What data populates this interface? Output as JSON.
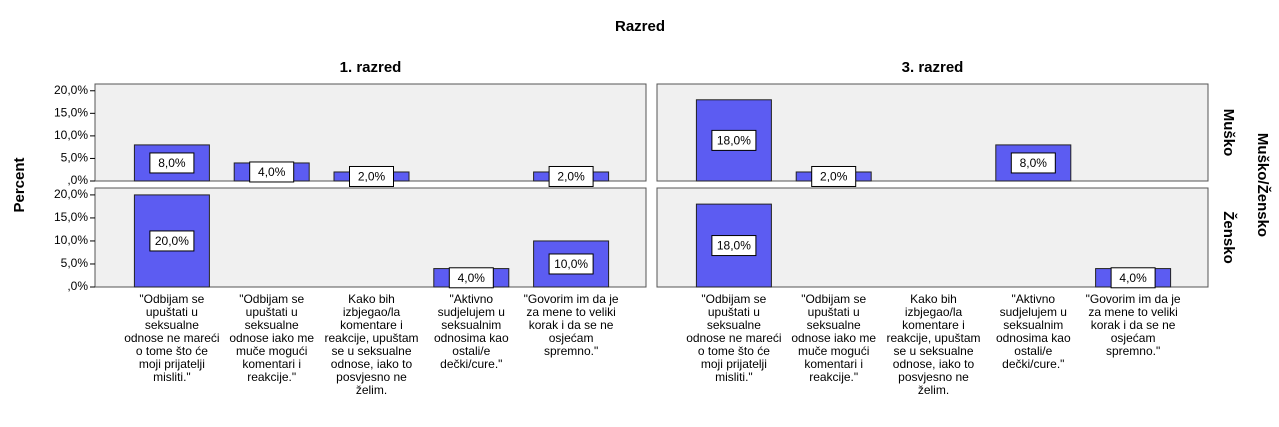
{
  "chart_data": {
    "type": "bar",
    "title": "Razred",
    "y_label": "Percent",
    "row_title": "Muško/Žensko",
    "columns": [
      "1. razred",
      "3. razred"
    ],
    "rows": [
      "Muško",
      "Žensko"
    ],
    "color": "#5c5cf2",
    "categories": [
      "\"Odbijam se upuštati u seksualne odnose ne mareći o tome što će moji prijatelji misliti.\"",
      "\"Odbijam se upuštati u seksualne odnose iako me muče mogući komentari i reakcije.\"",
      "Kako bih izbjegao/la komentare i reakcije, upuštam se u seksualne odnose, iako to posvjesno ne želim.",
      "\"Aktivno sudjelujem u seksualnim odnosima kao ostali/e dečki/cure.\"",
      "\"Govorim im da je za mene to veliki korak i da se ne osjećam spremno.\""
    ],
    "panels": [
      [
        {
          "values": [
            8,
            4,
            2,
            null,
            2
          ],
          "value_labels": [
            "8,0%",
            "4,0%",
            "2,0%",
            null,
            "2,0%"
          ]
        },
        {
          "values": [
            18,
            2,
            null,
            8,
            null
          ],
          "value_labels": [
            "18,0%",
            "2,0%",
            null,
            "8,0%",
            null
          ]
        }
      ],
      [
        {
          "values": [
            20,
            null,
            null,
            4,
            10
          ],
          "value_labels": [
            "20,0%",
            null,
            null,
            "4,0%",
            "10,0%"
          ]
        },
        {
          "values": [
            18,
            null,
            null,
            null,
            4
          ],
          "value_labels": [
            "18,0%",
            null,
            null,
            null,
            "4,0%"
          ]
        }
      ]
    ],
    "ylim": [
      0,
      21.5
    ],
    "yticks": [
      {
        "value": 0,
        "label": ",0%"
      },
      {
        "value": 5,
        "label": "5,0%"
      },
      {
        "value": 10,
        "label": "10,0%"
      },
      {
        "value": 15,
        "label": "15,0%"
      },
      {
        "value": 20,
        "label": "20,0%"
      }
    ]
  }
}
